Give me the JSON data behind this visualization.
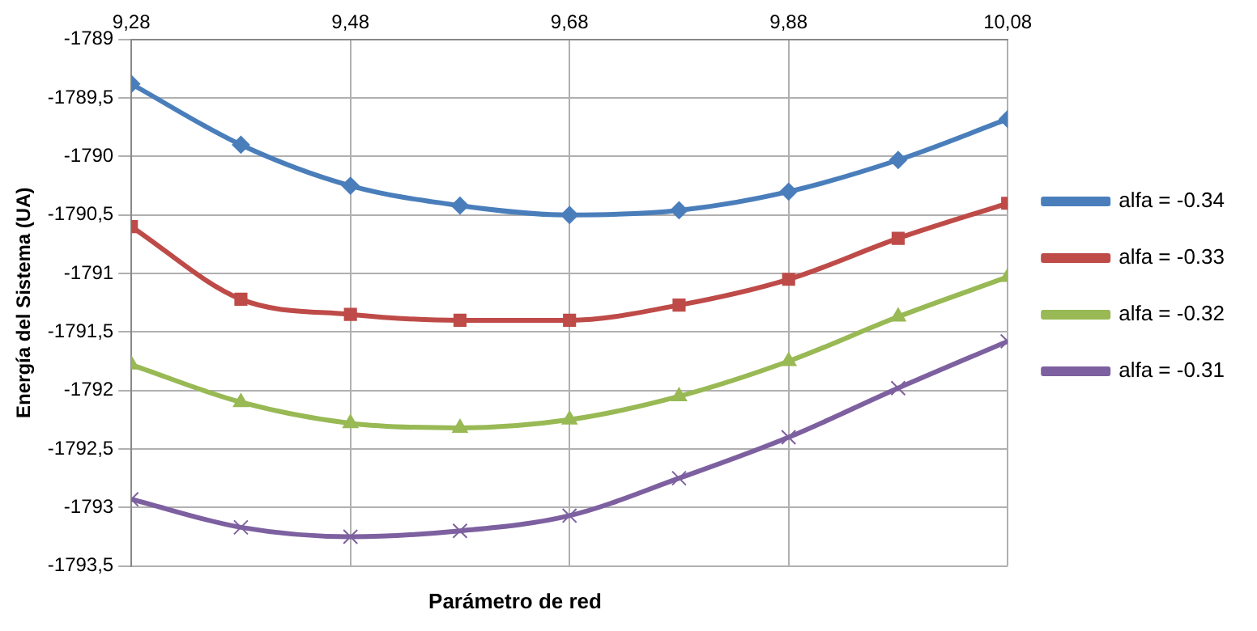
{
  "chart_data": {
    "type": "line",
    "xlabel": "Parámetro de red",
    "ylabel": "Energía del Sistema (UA)",
    "x": [
      9.28,
      9.38,
      9.48,
      9.58,
      9.68,
      9.78,
      9.88,
      9.98,
      10.08
    ],
    "xlim": [
      9.28,
      10.08
    ],
    "xticks": [
      {
        "value": 9.28,
        "label": "9,28"
      },
      {
        "value": 9.48,
        "label": "9,48"
      },
      {
        "value": 9.68,
        "label": "9,68"
      },
      {
        "value": 9.88,
        "label": "9,88"
      },
      {
        "value": 10.08,
        "label": "10,08"
      }
    ],
    "ylim": [
      -1793.5,
      -1789
    ],
    "yticks": [
      {
        "value": -1793.5,
        "label": "-1793,5"
      },
      -1793,
      {
        "value": -1792.5,
        "label": "-1792,5"
      },
      -1792,
      {
        "value": -1791.5,
        "label": "-1791,5"
      },
      -1791,
      {
        "value": -1790.5,
        "label": "-1790,5"
      },
      -1790,
      {
        "value": -1789.5,
        "label": "-1789,5"
      },
      -1789
    ],
    "grid": true,
    "legend": "right",
    "line_style": "solid",
    "series": [
      {
        "name": "alfa = -0.34",
        "color": "#4a7ebb",
        "marker": "diamond",
        "values": [
          -1789.38,
          -1789.9,
          -1790.25,
          -1790.42,
          -1790.5,
          -1790.46,
          -1790.3,
          -1790.03,
          -1789.68
        ]
      },
      {
        "name": "alfa = -0.33",
        "color": "#be4b48",
        "marker": "square",
        "values": [
          -1790.6,
          -1791.22,
          -1791.35,
          -1791.4,
          -1791.4,
          -1791.27,
          -1791.05,
          -1790.7,
          -1790.4
        ]
      },
      {
        "name": "alfa = -0.32",
        "color": "#98b954",
        "marker": "triangle",
        "values": [
          -1791.78,
          -1792.1,
          -1792.28,
          -1792.32,
          -1792.25,
          -1792.05,
          -1791.75,
          -1791.37,
          -1791.03
        ]
      },
      {
        "name": "alfa = -0.31",
        "color": "#7d60a0",
        "marker": "cross",
        "values": [
          -1792.93,
          -1793.17,
          -1793.25,
          -1793.2,
          -1793.07,
          -1792.75,
          -1792.4,
          -1791.98,
          -1791.58
        ]
      }
    ]
  }
}
